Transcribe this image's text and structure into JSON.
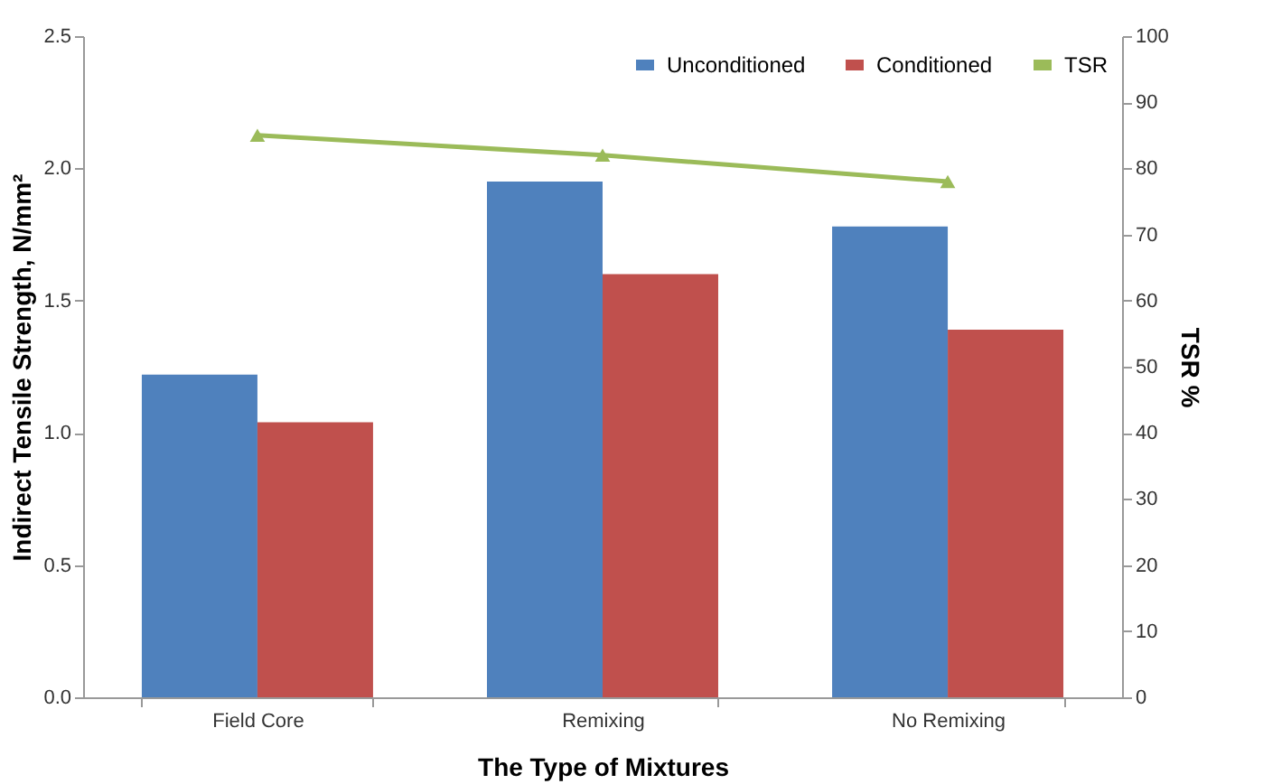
{
  "chart_data": {
    "type": "bar",
    "xlabel": "The Type of Mixtures",
    "ylabel": "Indirect Tensile Strength, N/mm²",
    "y2label": "TSR %",
    "categories": [
      "Field Core",
      "Remixing",
      "No Remixing"
    ],
    "series": [
      {
        "name": "Unconditioned",
        "color": "#4f81bd",
        "values": [
          1.22,
          1.95,
          1.78
        ]
      },
      {
        "name": "Conditioned",
        "color": "#c0504d",
        "values": [
          1.04,
          1.6,
          1.39
        ]
      },
      {
        "name": "TSR",
        "type": "line",
        "axis": "y2",
        "color": "#9bbb59",
        "marker": "triangle",
        "values": [
          85,
          82,
          78
        ]
      }
    ],
    "ylim": [
      0,
      2.5
    ],
    "yticks": [
      {
        "value": 0,
        "label": "0.0"
      },
      0.5,
      {
        "value": 1,
        "label": "1.0"
      },
      1.5,
      {
        "value": 2,
        "label": "2.0"
      },
      2.5
    ],
    "y2lim": [
      0,
      100
    ],
    "y2ticks": [
      0,
      10,
      20,
      30,
      40,
      50,
      60,
      70,
      80,
      90,
      100
    ],
    "legend": "top right",
    "grid": false
  }
}
